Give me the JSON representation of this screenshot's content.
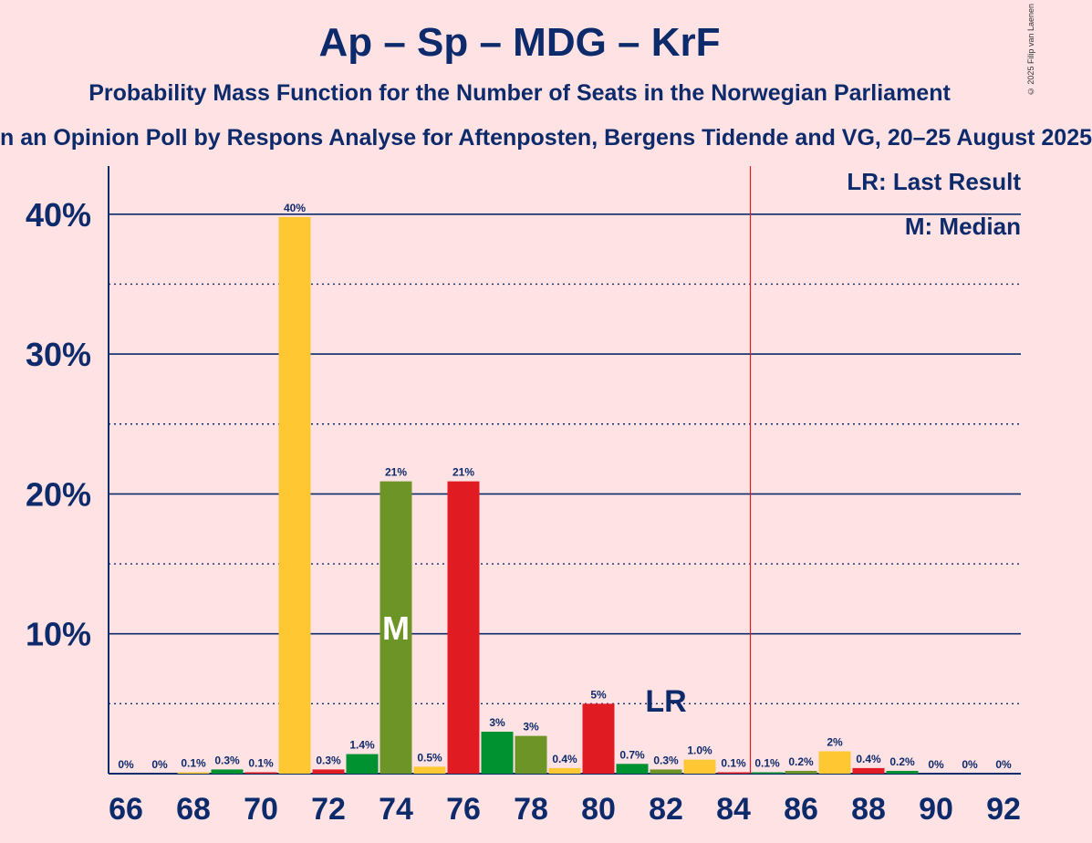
{
  "header": {
    "title": "Ap – Sp – MDG – KrF",
    "subtitle": "Probability Mass Function for the Number of Seats in the Norwegian Parliament",
    "subtitle2": "n an Opinion Poll by Respons Analyse for Aftenposten, Bergens Tidende and VG, 20–25 August 2025",
    "copyright": "© 2025 Filip van Laenen"
  },
  "legend": {
    "lr": "LR: Last Result",
    "m": "M: Median"
  },
  "chart_data": {
    "type": "bar",
    "x": [
      66,
      67,
      68,
      69,
      70,
      71,
      72,
      73,
      74,
      75,
      76,
      77,
      78,
      79,
      80,
      81,
      82,
      83,
      84,
      85,
      86,
      87,
      88,
      89,
      90,
      91,
      92
    ],
    "values": [
      0,
      0,
      0.1,
      0.3,
      0.1,
      39.8,
      0.3,
      1.4,
      20.9,
      0.5,
      20.9,
      3.0,
      2.7,
      0.4,
      5.0,
      0.7,
      0.3,
      1.0,
      0.1,
      0.1,
      0.2,
      1.6,
      0.4,
      0.2,
      0,
      0,
      0
    ],
    "labels": [
      "0%",
      "0%",
      "0.1%",
      "0.3%",
      "0.1%",
      "40%",
      "0.3%",
      "1.4%",
      "21%",
      "0.5%",
      "21%",
      "3%",
      "3%",
      "0.4%",
      "5%",
      "0.7%",
      "0.3%",
      "1.0%",
      "0.1%",
      "0.1%",
      "0.2%",
      "2%",
      "0.4%",
      "0.2%",
      "0%",
      "0%",
      "0%"
    ],
    "colors": [
      "#E11B22",
      "#6D9426",
      "#FFC832",
      "#009130",
      "#E11B22",
      "#FFC832",
      "#E11B22",
      "#009130",
      "#6D9426",
      "#FFC832",
      "#E11B22",
      "#009130",
      "#6D9426",
      "#FFC832",
      "#E11B22",
      "#009130",
      "#6D9426",
      "#FFC832",
      "#E11B22",
      "#009130",
      "#6D9426",
      "#FFC832",
      "#E11B22",
      "#009130",
      "#6D9426",
      "#FFC832",
      "#E11B22"
    ],
    "xticks": [
      "66",
      "68",
      "70",
      "72",
      "74",
      "76",
      "78",
      "80",
      "82",
      "84",
      "86",
      "88",
      "90",
      "92"
    ],
    "yticks": [
      "10%",
      "20%",
      "30%",
      "40%"
    ],
    "ylim": [
      0,
      43.5
    ],
    "majority_line": 84.5,
    "median_seat": 74,
    "median_label": "M",
    "last_result_seat": 82,
    "last_result_label": "LR"
  }
}
